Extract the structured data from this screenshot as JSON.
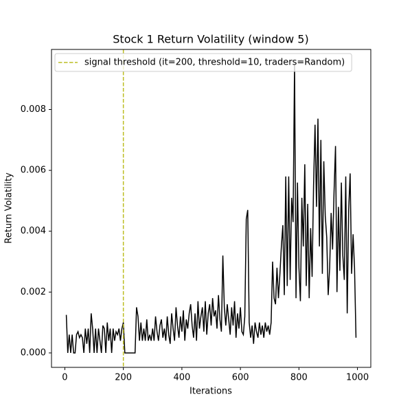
{
  "chart_data": {
    "type": "line",
    "title": "Stock 1 Return Volatility (window 5)",
    "x_label": "Iterations",
    "y_label": "Return Volatility",
    "x": [
      5,
      10,
      15,
      20,
      25,
      30,
      35,
      40,
      45,
      50,
      55,
      60,
      65,
      70,
      75,
      80,
      85,
      90,
      95,
      100,
      105,
      110,
      115,
      120,
      125,
      130,
      135,
      140,
      145,
      150,
      155,
      160,
      165,
      170,
      175,
      180,
      185,
      190,
      195,
      200,
      205,
      210,
      215,
      220,
      225,
      230,
      235,
      240,
      245,
      250,
      255,
      260,
      265,
      270,
      275,
      280,
      285,
      290,
      295,
      300,
      305,
      310,
      315,
      320,
      325,
      330,
      335,
      340,
      345,
      350,
      355,
      360,
      365,
      370,
      375,
      380,
      385,
      390,
      395,
      400,
      405,
      410,
      415,
      420,
      425,
      430,
      435,
      440,
      445,
      450,
      455,
      460,
      465,
      470,
      475,
      480,
      485,
      490,
      495,
      500,
      505,
      510,
      515,
      520,
      525,
      530,
      535,
      540,
      545,
      550,
      555,
      560,
      565,
      570,
      575,
      580,
      585,
      590,
      595,
      600,
      605,
      610,
      615,
      620,
      625,
      630,
      635,
      640,
      645,
      650,
      655,
      660,
      665,
      670,
      675,
      680,
      685,
      690,
      695,
      700,
      705,
      710,
      715,
      720,
      725,
      730,
      735,
      740,
      745,
      750,
      755,
      760,
      765,
      770,
      775,
      780,
      785,
      790,
      795,
      800,
      805,
      810,
      815,
      820,
      825,
      830,
      835,
      840,
      845,
      850,
      855,
      860,
      865,
      870,
      875,
      880,
      885,
      890,
      895,
      900,
      905,
      910,
      915,
      920,
      925,
      930,
      935,
      940,
      945,
      950,
      955,
      960,
      965,
      970,
      975,
      980,
      985,
      990,
      995
    ],
    "series": [
      {
        "name": "Stock 1",
        "color": "#000000",
        "values": [
          0.00125,
          0,
          0.0006,
          0,
          0.0006,
          0,
          0,
          0.0006,
          0.0007,
          0.0005,
          0.0006,
          0.0005,
          0,
          0.0008,
          0.0003,
          0.0008,
          0,
          0.0013,
          0.0008,
          0,
          0.0008,
          0,
          0.0008,
          0.0004,
          0,
          0.0009,
          0.0008,
          0,
          0.001,
          0.0004,
          0.0008,
          0,
          0.0008,
          0.0004,
          0.0007,
          0.0006,
          0.0008,
          0.0004,
          0.0008,
          0.001,
          0,
          0,
          0,
          0,
          0,
          0,
          0,
          0,
          0.0015,
          0.0012,
          0.0004,
          0.001,
          0.0004,
          0.0008,
          0.0004,
          0.0011,
          0.0004,
          0.0006,
          0.0004,
          0.0008,
          0.0004,
          0.0012,
          0.0007,
          0.0004,
          0.0009,
          0.0011,
          0.0005,
          0.0008,
          0.0004,
          0.0012,
          0.0006,
          0.0003,
          0.0013,
          0.0008,
          0.0004,
          0.0015,
          0.0009,
          0.0005,
          0.0012,
          0.0007,
          0.0014,
          0.0004,
          0.0011,
          0.0008,
          0.0013,
          0.0016,
          0.0009,
          0.0005,
          0.0013,
          0.0004,
          0.0017,
          0.0008,
          0.0012,
          0.0015,
          0.0007,
          0.0017,
          0.0006,
          0.0013,
          0.0016,
          0.0009,
          0.0018,
          0.0012,
          0.0014,
          0.0008,
          0.0019,
          0.0011,
          0.0007,
          0.0032,
          0.0015,
          0.0009,
          0.0016,
          0.0011,
          0.0006,
          0.0015,
          0.0009,
          0.0017,
          0.0005,
          0.0013,
          0.0008,
          0.0015,
          0.0007,
          0.0006,
          0.0012,
          0.0044,
          0.0047,
          0.001,
          0.0005,
          0.0009,
          0.0003,
          0.001,
          0.0007,
          0.0005,
          0.001,
          0.0006,
          0.0009,
          0.0005,
          0.001,
          0.0007,
          0.0009,
          0.0006,
          0.001,
          0.003,
          0.0018,
          0.0016,
          0.0028,
          0.0018,
          0.0026,
          0.0035,
          0.0042,
          0.0019,
          0.0058,
          0.0022,
          0.0058,
          0.0024,
          0.0051,
          0.0043,
          0.0095,
          0.0018,
          0.0056,
          0.0028,
          0.0017,
          0.0051,
          0.0035,
          0.0062,
          0.0022,
          0.0049,
          0.0018,
          0.0041,
          0.0025,
          0.0055,
          0.0075,
          0.0048,
          0.0077,
          0.0035,
          0.007,
          0.0026,
          0.0063,
          0.0045,
          0.0038,
          0.0019,
          0.0028,
          0.0046,
          0.0034,
          0.0053,
          0.0068,
          0.002,
          0.0048,
          0.0027,
          0.0056,
          0.0032,
          0.0024,
          0.0058,
          0.0013,
          0.0047,
          0.0059,
          0.0026,
          0.0039,
          0.0028,
          0.0005
        ]
      }
    ],
    "threshold_line": {
      "x": 200,
      "color": "#bcbd22",
      "label": "signal threshold (it=200, threshold=10, traders=Random)"
    },
    "xlim": [
      -45.6,
      1045.6
    ],
    "xticks": [
      0,
      200,
      400,
      600,
      800,
      1000
    ],
    "ylim": [
      -0.000475,
      0.009975
    ],
    "yticks": [
      {
        "value": 0,
        "label": "0.000"
      },
      {
        "value": 0.002,
        "label": "0.002"
      },
      {
        "value": 0.004,
        "label": "0.004"
      },
      {
        "value": 0.006,
        "label": "0.006"
      },
      {
        "value": 0.008,
        "label": "0.008"
      }
    ],
    "legend": "upper left"
  }
}
